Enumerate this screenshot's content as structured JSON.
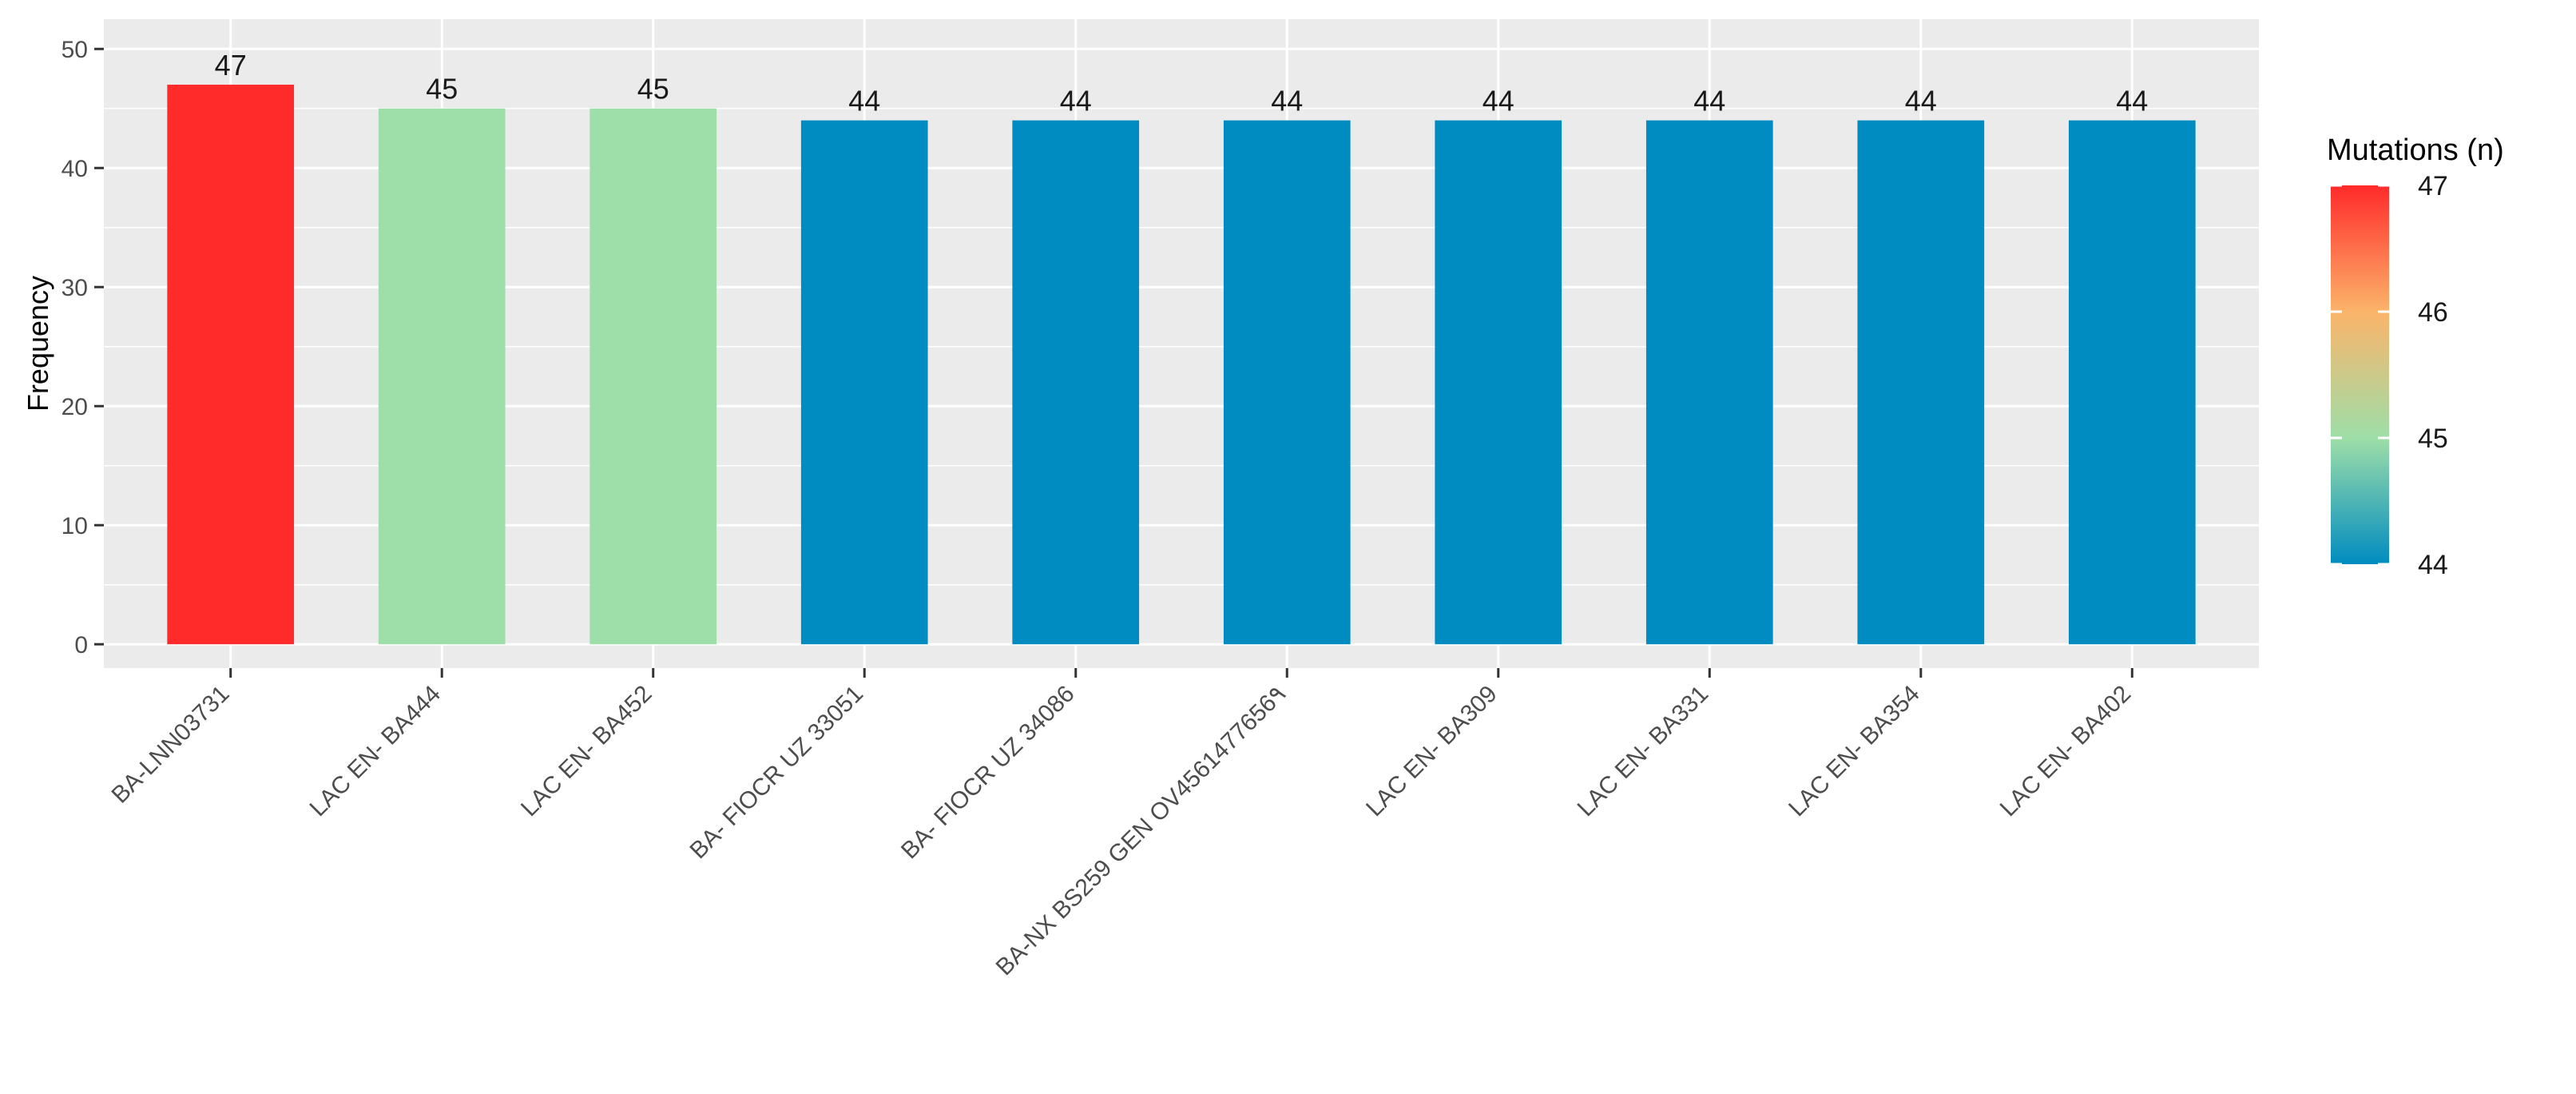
{
  "chart_data": {
    "type": "bar",
    "categories": [
      "BA-LNN03731",
      "LAC EN- BA444",
      "LAC EN- BA452",
      "BA- FIOCR UZ 33051",
      "BA- FIOCR UZ 34086",
      "BA-NX BS259 GEN OV4561477656٩",
      "LAC EN- BA309",
      "LAC EN- BA331",
      "LAC EN- BA354",
      "LAC EN- BA402"
    ],
    "values": [
      47,
      45,
      45,
      44,
      44,
      44,
      44,
      44,
      44,
      44
    ],
    "bar_labels": [
      "47",
      "45",
      "45",
      "44",
      "44",
      "44",
      "44",
      "44",
      "44",
      "44"
    ],
    "xlabel": "",
    "ylabel": "Frequency",
    "ylim": [
      -2,
      52.5
    ],
    "yticks": [
      0,
      10,
      20,
      30,
      40,
      50
    ],
    "grid": true,
    "legend": {
      "title": "Mutations (n)",
      "placement": "right",
      "min": 44,
      "max": 47,
      "ticks": [
        44,
        45,
        46,
        47
      ],
      "tick_labels": [
        "44",
        "45",
        "46",
        "47"
      ]
    },
    "colors": {
      "panel_background": "#ebebeb",
      "grid": "#ffffff",
      "low": "#008cc0",
      "mid": "#9edea8",
      "high_mid": "#fbb46a",
      "high": "#ff2a2a"
    }
  }
}
